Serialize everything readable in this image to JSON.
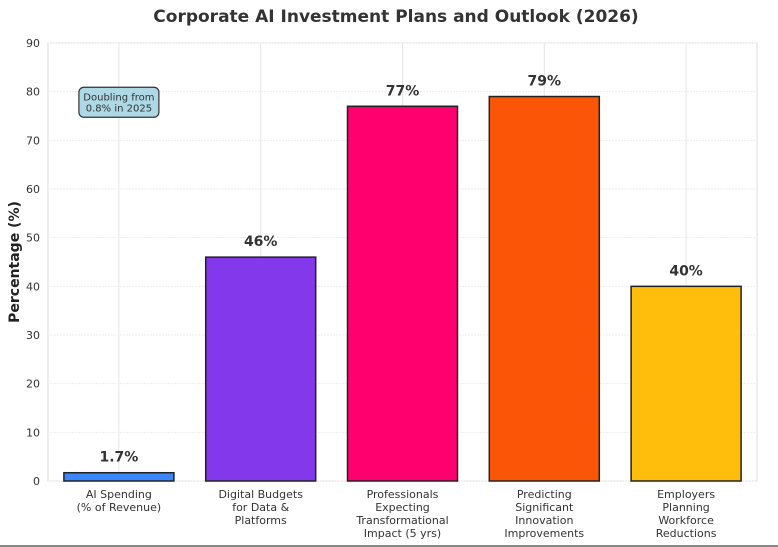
{
  "chart_data": {
    "type": "bar",
    "title": "Corporate AI Investment Plans and Outlook (2026)",
    "xlabel": "",
    "ylabel": "Percentage (%)",
    "ylim": [
      0,
      90
    ],
    "yticks": [
      "0",
      "10",
      "20",
      "30",
      "40",
      "50",
      "60",
      "70",
      "80",
      "90"
    ],
    "grid": true,
    "categories": [
      [
        "AI Spending",
        "(% of Revenue)"
      ],
      [
        "Digital Budgets",
        "for Data &",
        "Platforms"
      ],
      [
        "Professionals",
        "Expecting",
        "Transformational",
        "Impact (5 yrs)"
      ],
      [
        "Predicting",
        "Significant",
        "Innovation",
        "Improvements"
      ],
      [
        "Employers",
        "Planning",
        "Workforce",
        "Reductions"
      ]
    ],
    "values": [
      1.7,
      46,
      77,
      79,
      40
    ],
    "value_labels": [
      "1.7%",
      "46%",
      "77%",
      "79%",
      "40%"
    ],
    "colors": [
      "#3a86ff",
      "#8338ec",
      "#ff006e",
      "#fb5607",
      "#ffbe0b"
    ],
    "annotation": {
      "lines": [
        "Doubling from",
        "0.8% in 2025"
      ],
      "bar_index": 0,
      "y": 77,
      "color": "#add8e6"
    }
  }
}
